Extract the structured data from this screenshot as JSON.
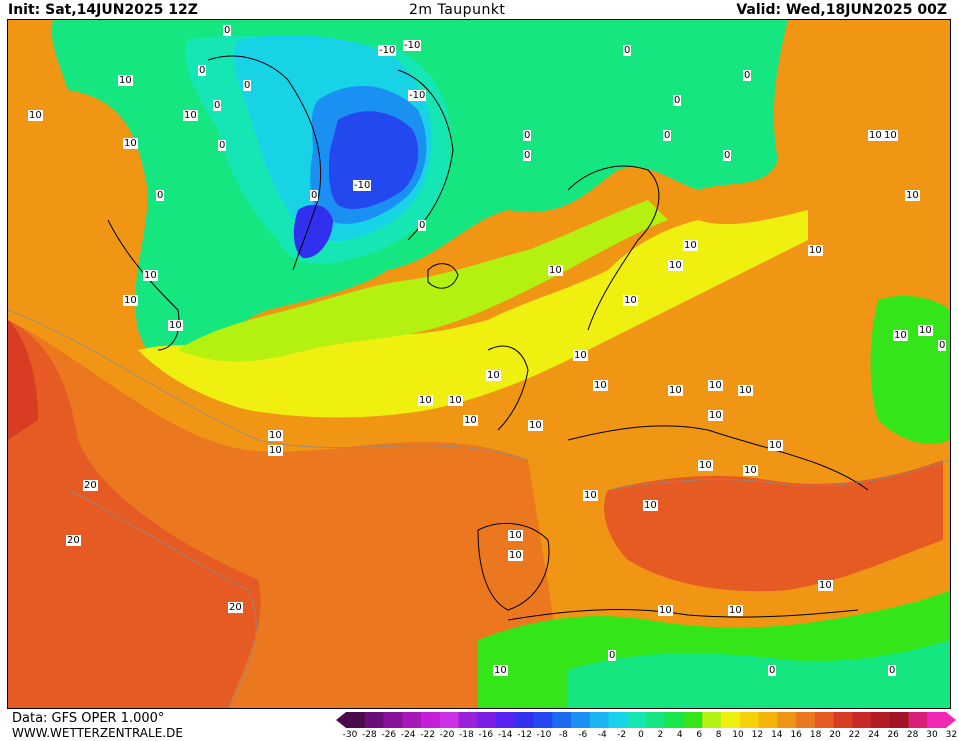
{
  "header": {
    "init": "Init: Sat,14JUN2025 12Z",
    "title": "2m Taupunkt",
    "valid": "Valid: Wed,18JUN2025 00Z"
  },
  "footer": {
    "data_source": "Data: GFS OPER 1.000°",
    "website": "WWW.WETTERZENTRALE.DE"
  },
  "colorbar": {
    "ticks": [
      "-30",
      "-28",
      "-26",
      "-24",
      "-22",
      "-20",
      "-18",
      "-16",
      "-14",
      "-12",
      "-10",
      "-8",
      "-6",
      "-4",
      "-2",
      "0",
      "2",
      "4",
      "6",
      "8",
      "10",
      "12",
      "14",
      "16",
      "18",
      "20",
      "22",
      "24",
      "26",
      "28",
      "30",
      "32"
    ],
    "colors": [
      "#4b0a4b",
      "#6a0d7a",
      "#8a119a",
      "#a818b8",
      "#c41ed8",
      "#cc33e6",
      "#9b22d8",
      "#7b1ee6",
      "#5a22f0",
      "#3030ee",
      "#2448f0",
      "#1c6cf0",
      "#1a90f2",
      "#1ab4f2",
      "#18d2e6",
      "#16e6b4",
      "#16e680",
      "#18e64a",
      "#34e619",
      "#b4f010",
      "#f0f010",
      "#f5d20a",
      "#f5b40a",
      "#f09614",
      "#eb781e",
      "#e65a23",
      "#d83c23",
      "#c82828",
      "#b41e23",
      "#a01423",
      "#d81e78",
      "#f028b4"
    ]
  },
  "map": {
    "contour_labels": [
      "0",
      "10",
      "-10",
      "20"
    ],
    "colors": {
      "ocean_warm": "#eb781e",
      "ocean_mid": "#f09614",
      "ocean_hot": "#e65a23",
      "land_mild": "#f5b40a",
      "yellow": "#f0f010",
      "green": "#34e619",
      "cyan": "#16e6b4",
      "blue": "#2448f0",
      "deep_blue": "#3030ee"
    }
  }
}
